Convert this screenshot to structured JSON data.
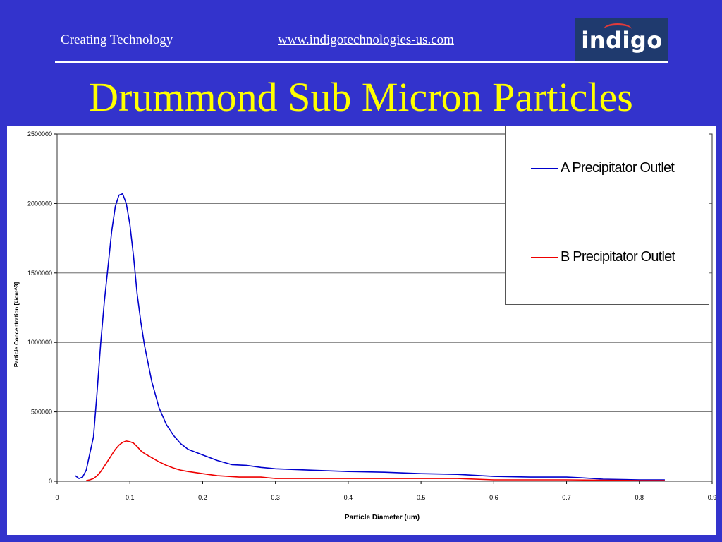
{
  "header": {
    "tagline": "Creating Technology",
    "url": "www.indigotechnologies-us.com",
    "logo_text": "indigo"
  },
  "title": "Drummond Sub Micron Particles",
  "colors": {
    "background": "#3333cc",
    "title": "#ffff00",
    "series_a": "#0000cc",
    "series_b": "#ee0000"
  },
  "chart_data": {
    "type": "line",
    "title": "",
    "xlabel": "Particle Diameter (um)",
    "ylabel": "Particle Concentration [#/cm^3]",
    "xlim": [
      0,
      0.9
    ],
    "ylim": [
      0,
      2500000
    ],
    "x_ticks": [
      "0",
      "0.1",
      "0.2",
      "0.3",
      "0.4",
      "0.5",
      "0.6",
      "0.7",
      "0.8",
      "0.9"
    ],
    "y_ticks": [
      "0",
      "500000",
      "1000000",
      "1500000",
      "2000000",
      "2500000"
    ],
    "grid": true,
    "legend_position": "top-right",
    "series": [
      {
        "name": "A Precipitator Outlet",
        "color": "#0000cc",
        "points": [
          [
            0.025,
            40000
          ],
          [
            0.03,
            20000
          ],
          [
            0.035,
            30000
          ],
          [
            0.04,
            80000
          ],
          [
            0.045,
            200000
          ],
          [
            0.05,
            320000
          ],
          [
            0.055,
            650000
          ],
          [
            0.06,
            1000000
          ],
          [
            0.065,
            1300000
          ],
          [
            0.07,
            1550000
          ],
          [
            0.075,
            1800000
          ],
          [
            0.08,
            1980000
          ],
          [
            0.085,
            2060000
          ],
          [
            0.09,
            2070000
          ],
          [
            0.095,
            2000000
          ],
          [
            0.1,
            1850000
          ],
          [
            0.105,
            1620000
          ],
          [
            0.11,
            1350000
          ],
          [
            0.115,
            1150000
          ],
          [
            0.12,
            980000
          ],
          [
            0.13,
            720000
          ],
          [
            0.14,
            530000
          ],
          [
            0.15,
            410000
          ],
          [
            0.16,
            330000
          ],
          [
            0.17,
            270000
          ],
          [
            0.18,
            230000
          ],
          [
            0.2,
            190000
          ],
          [
            0.22,
            150000
          ],
          [
            0.24,
            120000
          ],
          [
            0.26,
            115000
          ],
          [
            0.28,
            100000
          ],
          [
            0.3,
            90000
          ],
          [
            0.35,
            80000
          ],
          [
            0.4,
            70000
          ],
          [
            0.45,
            65000
          ],
          [
            0.5,
            55000
          ],
          [
            0.55,
            50000
          ],
          [
            0.6,
            35000
          ],
          [
            0.65,
            30000
          ],
          [
            0.7,
            30000
          ],
          [
            0.72,
            25000
          ],
          [
            0.75,
            15000
          ],
          [
            0.8,
            10000
          ],
          [
            0.835,
            10000
          ]
        ]
      },
      {
        "name": "B Precipitator Outlet",
        "color": "#ee0000",
        "points": [
          [
            0.04,
            5000
          ],
          [
            0.045,
            10000
          ],
          [
            0.05,
            20000
          ],
          [
            0.055,
            40000
          ],
          [
            0.06,
            70000
          ],
          [
            0.065,
            110000
          ],
          [
            0.07,
            150000
          ],
          [
            0.075,
            190000
          ],
          [
            0.08,
            230000
          ],
          [
            0.085,
            260000
          ],
          [
            0.09,
            280000
          ],
          [
            0.095,
            290000
          ],
          [
            0.1,
            285000
          ],
          [
            0.105,
            275000
          ],
          [
            0.11,
            250000
          ],
          [
            0.115,
            220000
          ],
          [
            0.12,
            200000
          ],
          [
            0.13,
            170000
          ],
          [
            0.14,
            140000
          ],
          [
            0.15,
            115000
          ],
          [
            0.16,
            95000
          ],
          [
            0.17,
            80000
          ],
          [
            0.18,
            70000
          ],
          [
            0.2,
            55000
          ],
          [
            0.22,
            40000
          ],
          [
            0.25,
            30000
          ],
          [
            0.28,
            30000
          ],
          [
            0.3,
            20000
          ],
          [
            0.35,
            20000
          ],
          [
            0.4,
            20000
          ],
          [
            0.5,
            20000
          ],
          [
            0.55,
            20000
          ],
          [
            0.6,
            10000
          ],
          [
            0.7,
            10000
          ],
          [
            0.8,
            5000
          ],
          [
            0.835,
            5000
          ]
        ]
      }
    ]
  }
}
